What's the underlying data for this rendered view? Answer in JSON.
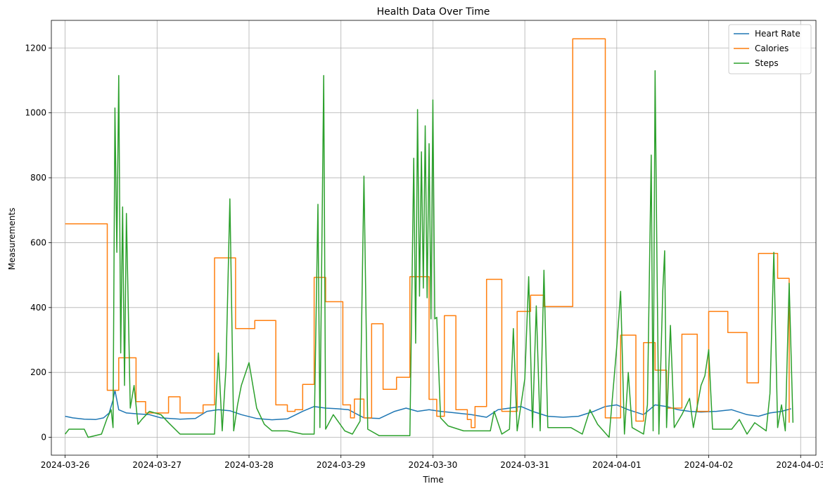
{
  "chart_data": {
    "type": "line",
    "title": "Health Data Over Time",
    "xlabel": "Time",
    "ylabel": "Measurements",
    "x_range": [
      "2024-03-25T20:24",
      "2024-04-03T04:00"
    ],
    "ylim": [
      -55,
      1285
    ],
    "x_ticks": [
      "2024-03-26",
      "2024-03-27",
      "2024-03-28",
      "2024-03-29",
      "2024-03-30",
      "2024-03-31",
      "2024-04-01",
      "2024-04-02",
      "2024-04-03"
    ],
    "y_ticks": [
      0,
      200,
      400,
      600,
      800,
      1000,
      1200
    ],
    "grid": true,
    "legend": "upper-right",
    "series": [
      {
        "name": "Heart Rate",
        "color": "#1f77b4",
        "step": false,
        "points": [
          [
            "2024-03-26T00:00",
            65
          ],
          [
            "2024-03-26T02:00",
            60
          ],
          [
            "2024-03-26T05:00",
            56
          ],
          [
            "2024-03-26T08:00",
            55
          ],
          [
            "2024-03-26T10:00",
            60
          ],
          [
            "2024-03-26T11:30",
            75
          ],
          [
            "2024-03-26T12:30",
            115
          ],
          [
            "2024-03-26T13:00",
            145
          ],
          [
            "2024-03-26T14:00",
            85
          ],
          [
            "2024-03-26T16:00",
            75
          ],
          [
            "2024-03-26T19:00",
            72
          ],
          [
            "2024-03-26T22:00",
            70
          ],
          [
            "2024-03-27T01:00",
            60
          ],
          [
            "2024-03-27T06:00",
            56
          ],
          [
            "2024-03-27T10:00",
            58
          ],
          [
            "2024-03-27T13:00",
            80
          ],
          [
            "2024-03-27T16:00",
            85
          ],
          [
            "2024-03-27T19:00",
            82
          ],
          [
            "2024-03-27T22:00",
            70
          ],
          [
            "2024-03-28T02:00",
            58
          ],
          [
            "2024-03-28T06:00",
            54
          ],
          [
            "2024-03-28T10:00",
            57
          ],
          [
            "2024-03-28T14:00",
            80
          ],
          [
            "2024-03-28T17:00",
            95
          ],
          [
            "2024-03-28T20:00",
            90
          ],
          [
            "2024-03-28T23:00",
            88
          ],
          [
            "2024-03-29T02:00",
            85
          ],
          [
            "2024-03-29T06:00",
            60
          ],
          [
            "2024-03-29T10:00",
            58
          ],
          [
            "2024-03-29T14:00",
            80
          ],
          [
            "2024-03-29T17:00",
            90
          ],
          [
            "2024-03-29T20:00",
            80
          ],
          [
            "2024-03-29T23:00",
            85
          ],
          [
            "2024-03-30T02:00",
            80
          ],
          [
            "2024-03-30T06:00",
            75
          ],
          [
            "2024-03-30T10:00",
            70
          ],
          [
            "2024-03-30T14:00",
            62
          ],
          [
            "2024-03-30T17:00",
            85
          ],
          [
            "2024-03-30T20:00",
            90
          ],
          [
            "2024-03-30T23:00",
            95
          ],
          [
            "2024-03-31T02:00",
            80
          ],
          [
            "2024-03-31T06:00",
            65
          ],
          [
            "2024-03-31T10:00",
            62
          ],
          [
            "2024-03-31T14:00",
            65
          ],
          [
            "2024-03-31T18:00",
            80
          ],
          [
            "2024-03-31T21:00",
            95
          ],
          [
            "2024-04-01T00:00",
            100
          ],
          [
            "2024-04-01T03:00",
            85
          ],
          [
            "2024-04-01T07:00",
            70
          ],
          [
            "2024-04-01T10:00",
            100
          ],
          [
            "2024-04-01T13:00",
            95
          ],
          [
            "2024-04-01T16:00",
            85
          ],
          [
            "2024-04-01T19:00",
            80
          ],
          [
            "2024-04-01T22:00",
            78
          ],
          [
            "2024-04-02T02:00",
            80
          ],
          [
            "2024-04-02T06:00",
            85
          ],
          [
            "2024-04-02T10:00",
            70
          ],
          [
            "2024-04-02T13:00",
            65
          ],
          [
            "2024-04-02T16:00",
            75
          ],
          [
            "2024-04-02T19:00",
            80
          ],
          [
            "2024-04-02T21:30",
            88
          ]
        ]
      },
      {
        "name": "Calories",
        "color": "#ff7f0e",
        "step": true,
        "points": [
          [
            "2024-03-26T00:00",
            658
          ],
          [
            "2024-03-26T11:00",
            145
          ],
          [
            "2024-03-26T14:00",
            245
          ],
          [
            "2024-03-26T18:30",
            110
          ],
          [
            "2024-03-26T21:00",
            75
          ],
          [
            "2024-03-27T03:00",
            125
          ],
          [
            "2024-03-27T06:00",
            75
          ],
          [
            "2024-03-27T12:00",
            100
          ],
          [
            "2024-03-27T15:00",
            553
          ],
          [
            "2024-03-27T20:30",
            335
          ],
          [
            "2024-03-28T01:30",
            360
          ],
          [
            "2024-03-28T07:00",
            100
          ],
          [
            "2024-03-28T10:00",
            80
          ],
          [
            "2024-03-28T12:00",
            85
          ],
          [
            "2024-03-28T14:00",
            163
          ],
          [
            "2024-03-28T17:00",
            493
          ],
          [
            "2024-03-28T20:00",
            418
          ],
          [
            "2024-03-29T00:30",
            100
          ],
          [
            "2024-03-29T02:30",
            60
          ],
          [
            "2024-03-29T03:30",
            118
          ],
          [
            "2024-03-29T06:00",
            60
          ],
          [
            "2024-03-29T08:00",
            350
          ],
          [
            "2024-03-29T11:00",
            148
          ],
          [
            "2024-03-29T14:30",
            185
          ],
          [
            "2024-03-29T18:00",
            495
          ],
          [
            "2024-03-29T23:00",
            117
          ],
          [
            "2024-03-30T01:00",
            65
          ],
          [
            "2024-03-30T03:00",
            375
          ],
          [
            "2024-03-30T06:00",
            85
          ],
          [
            "2024-03-30T09:00",
            55
          ],
          [
            "2024-03-30T10:00",
            30
          ],
          [
            "2024-03-30T11:00",
            95
          ],
          [
            "2024-03-30T14:00",
            487
          ],
          [
            "2024-03-30T18:00",
            80
          ],
          [
            "2024-03-30T22:00",
            388
          ],
          [
            "2024-03-31T01:30",
            438
          ],
          [
            "2024-03-31T05:00",
            403
          ],
          [
            "2024-03-31T12:30",
            1228
          ],
          [
            "2024-03-31T21:00",
            60
          ],
          [
            "2024-04-01T01:00",
            315
          ],
          [
            "2024-04-01T05:00",
            50
          ],
          [
            "2024-04-01T07:00",
            292
          ],
          [
            "2024-04-01T10:00",
            207
          ],
          [
            "2024-04-01T13:00",
            90
          ],
          [
            "2024-04-01T17:00",
            318
          ],
          [
            "2024-04-01T21:00",
            80
          ],
          [
            "2024-04-02T00:00",
            388
          ],
          [
            "2024-04-02T05:00",
            323
          ],
          [
            "2024-04-02T10:00",
            168
          ],
          [
            "2024-04-02T13:00",
            567
          ],
          [
            "2024-04-02T18:00",
            490
          ],
          [
            "2024-04-02T21:00",
            45
          ]
        ]
      },
      {
        "name": "Steps",
        "color": "#2ca02c",
        "step": false,
        "points": [
          [
            "2024-03-26T00:00",
            10
          ],
          [
            "2024-03-26T01:00",
            25
          ],
          [
            "2024-03-26T05:00",
            25
          ],
          [
            "2024-03-26T06:00",
            0
          ],
          [
            "2024-03-26T09:30",
            10
          ],
          [
            "2024-03-26T11:00",
            60
          ],
          [
            "2024-03-26T12:00",
            85
          ],
          [
            "2024-03-26T12:30",
            30
          ],
          [
            "2024-03-26T13:00",
            1015
          ],
          [
            "2024-03-26T13:30",
            570
          ],
          [
            "2024-03-26T14:00",
            1115
          ],
          [
            "2024-03-26T14:30",
            260
          ],
          [
            "2024-03-26T15:00",
            710
          ],
          [
            "2024-03-26T15:30",
            160
          ],
          [
            "2024-03-26T16:00",
            690
          ],
          [
            "2024-03-26T17:00",
            90
          ],
          [
            "2024-03-26T18:00",
            160
          ],
          [
            "2024-03-26T19:00",
            40
          ],
          [
            "2024-03-26T20:00",
            55
          ],
          [
            "2024-03-26T22:00",
            80
          ],
          [
            "2024-03-27T01:00",
            70
          ],
          [
            "2024-03-27T03:00",
            45
          ],
          [
            "2024-03-27T06:00",
            10
          ],
          [
            "2024-03-27T12:00",
            10
          ],
          [
            "2024-03-27T15:00",
            10
          ],
          [
            "2024-03-27T16:00",
            260
          ],
          [
            "2024-03-27T17:00",
            20
          ],
          [
            "2024-03-27T18:00",
            215
          ],
          [
            "2024-03-27T19:00",
            735
          ],
          [
            "2024-03-27T20:00",
            20
          ],
          [
            "2024-03-27T21:00",
            100
          ],
          [
            "2024-03-27T22:00",
            160
          ],
          [
            "2024-03-28T00:00",
            230
          ],
          [
            "2024-03-28T02:00",
            90
          ],
          [
            "2024-03-28T04:00",
            40
          ],
          [
            "2024-03-28T06:00",
            20
          ],
          [
            "2024-03-28T10:00",
            20
          ],
          [
            "2024-03-28T14:00",
            10
          ],
          [
            "2024-03-28T17:00",
            10
          ],
          [
            "2024-03-28T18:00",
            718
          ],
          [
            "2024-03-28T18:30",
            30
          ],
          [
            "2024-03-28T19:30",
            1115
          ],
          [
            "2024-03-28T20:00",
            25
          ],
          [
            "2024-03-28T22:00",
            70
          ],
          [
            "2024-03-29T01:00",
            20
          ],
          [
            "2024-03-29T03:00",
            10
          ],
          [
            "2024-03-29T05:00",
            50
          ],
          [
            "2024-03-29T06:00",
            805
          ],
          [
            "2024-03-29T07:00",
            25
          ],
          [
            "2024-03-29T10:00",
            5
          ],
          [
            "2024-03-29T14:00",
            5
          ],
          [
            "2024-03-29T18:00",
            5
          ],
          [
            "2024-03-29T19:00",
            860
          ],
          [
            "2024-03-29T19:30",
            290
          ],
          [
            "2024-03-29T20:00",
            1010
          ],
          [
            "2024-03-29T20:30",
            435
          ],
          [
            "2024-03-29T21:00",
            880
          ],
          [
            "2024-03-29T21:30",
            460
          ],
          [
            "2024-03-29T22:00",
            960
          ],
          [
            "2024-03-29T22:30",
            430
          ],
          [
            "2024-03-29T23:00",
            905
          ],
          [
            "2024-03-29T23:30",
            365
          ],
          [
            "2024-03-30T00:00",
            1040
          ],
          [
            "2024-03-30T00:30",
            365
          ],
          [
            "2024-03-30T01:00",
            370
          ],
          [
            "2024-03-30T02:00",
            60
          ],
          [
            "2024-03-30T04:00",
            35
          ],
          [
            "2024-03-30T08:00",
            20
          ],
          [
            "2024-03-30T12:00",
            20
          ],
          [
            "2024-03-30T15:00",
            20
          ],
          [
            "2024-03-30T16:00",
            80
          ],
          [
            "2024-03-30T18:00",
            10
          ],
          [
            "2024-03-30T20:00",
            25
          ],
          [
            "2024-03-30T21:00",
            335
          ],
          [
            "2024-03-30T22:00",
            20
          ],
          [
            "2024-03-31T00:00",
            180
          ],
          [
            "2024-03-31T01:00",
            495
          ],
          [
            "2024-03-31T02:00",
            30
          ],
          [
            "2024-03-31T03:00",
            405
          ],
          [
            "2024-03-31T04:00",
            20
          ],
          [
            "2024-03-31T05:00",
            515
          ],
          [
            "2024-03-31T06:00",
            30
          ],
          [
            "2024-03-31T09:00",
            30
          ],
          [
            "2024-03-31T12:00",
            30
          ],
          [
            "2024-03-31T15:00",
            10
          ],
          [
            "2024-03-31T17:00",
            85
          ],
          [
            "2024-03-31T19:00",
            40
          ],
          [
            "2024-03-31T22:00",
            0
          ],
          [
            "2024-04-01T00:00",
            280
          ],
          [
            "2024-04-01T01:00",
            450
          ],
          [
            "2024-04-01T02:00",
            10
          ],
          [
            "2024-04-01T03:00",
            200
          ],
          [
            "2024-04-01T04:00",
            30
          ],
          [
            "2024-04-01T07:00",
            10
          ],
          [
            "2024-04-01T08:00",
            100
          ],
          [
            "2024-04-01T09:00",
            870
          ],
          [
            "2024-04-01T09:30",
            20
          ],
          [
            "2024-04-01T10:00",
            1130
          ],
          [
            "2024-04-01T10:30",
            530
          ],
          [
            "2024-04-01T11:00",
            10
          ],
          [
            "2024-04-01T12:00",
            450
          ],
          [
            "2024-04-01T12:30",
            575
          ],
          [
            "2024-04-01T13:00",
            30
          ],
          [
            "2024-04-01T14:00",
            345
          ],
          [
            "2024-04-01T15:00",
            30
          ],
          [
            "2024-04-01T17:00",
            70
          ],
          [
            "2024-04-01T19:00",
            120
          ],
          [
            "2024-04-01T20:00",
            30
          ],
          [
            "2024-04-01T22:00",
            160
          ],
          [
            "2024-04-01T23:00",
            190
          ],
          [
            "2024-04-02T00:00",
            270
          ],
          [
            "2024-04-02T01:00",
            25
          ],
          [
            "2024-04-02T06:00",
            25
          ],
          [
            "2024-04-02T08:00",
            55
          ],
          [
            "2024-04-02T10:00",
            10
          ],
          [
            "2024-04-02T12:00",
            45
          ],
          [
            "2024-04-02T15:00",
            20
          ],
          [
            "2024-04-02T16:00",
            135
          ],
          [
            "2024-04-02T17:00",
            570
          ],
          [
            "2024-04-02T18:00",
            30
          ],
          [
            "2024-04-02T19:00",
            100
          ],
          [
            "2024-04-02T20:00",
            20
          ],
          [
            "2024-04-02T21:00",
            475
          ],
          [
            "2024-04-02T22:00",
            45
          ]
        ]
      }
    ]
  }
}
